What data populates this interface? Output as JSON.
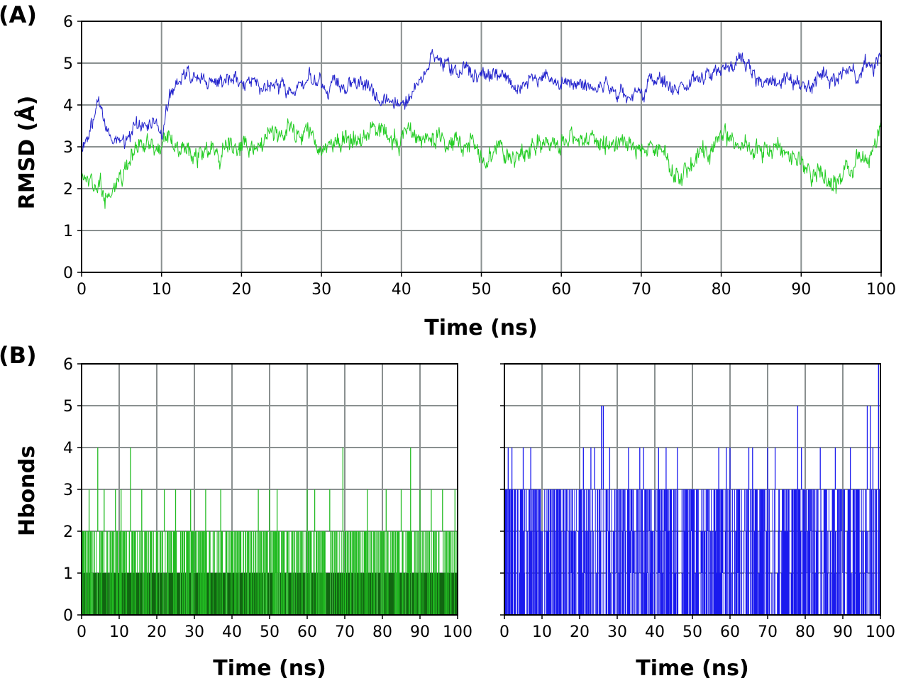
{
  "chart_data": [
    {
      "panel_label": "(A)",
      "type": "line",
      "xlabel": "Time (ns)",
      "ylabel": "RMSD (Å)",
      "xlim": [
        0,
        100
      ],
      "ylim": [
        0,
        6
      ],
      "xticks": [
        "0",
        "10",
        "20",
        "30",
        "40",
        "50",
        "60",
        "70",
        "80",
        "90",
        "100"
      ],
      "yticks": [
        "0",
        "1",
        "2",
        "3",
        "4",
        "5",
        "6"
      ],
      "grid": true,
      "series": [
        {
          "name": "blue trace",
          "color": "#2222cc",
          "x": [
            0,
            2,
            4,
            6,
            8,
            10,
            11,
            12,
            15,
            20,
            25,
            30,
            35,
            40,
            43,
            44,
            50,
            55,
            60,
            65,
            70,
            75,
            80,
            83,
            85,
            90,
            95,
            100
          ],
          "y": [
            2.8,
            3.9,
            3.0,
            3.3,
            3.5,
            3.5,
            4.3,
            4.5,
            4.5,
            4.6,
            4.4,
            4.6,
            4.5,
            4.0,
            4.7,
            5.2,
            4.7,
            4.5,
            4.6,
            4.4,
            4.4,
            4.6,
            4.7,
            5.0,
            4.6,
            4.5,
            4.7,
            5.1
          ],
          "noise": 0.22
        },
        {
          "name": "green trace",
          "color": "#22cc22",
          "x": [
            0,
            2,
            4,
            6,
            8,
            10,
            15,
            20,
            25,
            28,
            30,
            35,
            40,
            45,
            50,
            55,
            60,
            65,
            70,
            73,
            75,
            80,
            85,
            90,
            92,
            95,
            100
          ],
          "y": [
            2.3,
            2.0,
            1.9,
            2.7,
            3.1,
            3.1,
            2.9,
            3.0,
            3.2,
            3.4,
            3.0,
            3.3,
            3.2,
            3.2,
            2.8,
            2.9,
            3.1,
            3.2,
            3.0,
            2.8,
            2.3,
            3.2,
            3.0,
            2.7,
            2.3,
            2.2,
            3.2
          ],
          "noise": 0.28
        }
      ]
    },
    {
      "panel_label": "(B)",
      "type": "bar",
      "xlabel": "Time (ns)",
      "ylabel": "Hbonds",
      "xlim": [
        0,
        100
      ],
      "ylim": [
        0,
        6
      ],
      "xticks": [
        "0",
        "10",
        "20",
        "30",
        "40",
        "50",
        "60",
        "70",
        "80",
        "90",
        "100"
      ],
      "yticks": [
        "0",
        "1",
        "2",
        "3",
        "4",
        "5",
        "6"
      ],
      "grid": true,
      "series": [
        {
          "name": "green hbonds",
          "color": "#22bb22",
          "fill_color": "#116611",
          "baseline": 1,
          "spikes": [
            {
              "x": 4.3,
              "y": 4
            },
            {
              "x": 13,
              "y": 4
            },
            {
              "x": 69.5,
              "y": 4
            },
            {
              "x": 87.5,
              "y": 4
            },
            {
              "x": 2,
              "y": 3
            },
            {
              "x": 6,
              "y": 3
            },
            {
              "x": 9,
              "y": 3
            },
            {
              "x": 10.5,
              "y": 3
            },
            {
              "x": 16,
              "y": 3
            },
            {
              "x": 22,
              "y": 3
            },
            {
              "x": 25,
              "y": 3
            },
            {
              "x": 29,
              "y": 3
            },
            {
              "x": 33,
              "y": 3
            },
            {
              "x": 37,
              "y": 3
            },
            {
              "x": 47,
              "y": 3
            },
            {
              "x": 50,
              "y": 3
            },
            {
              "x": 52,
              "y": 3
            },
            {
              "x": 60,
              "y": 3
            },
            {
              "x": 62,
              "y": 3
            },
            {
              "x": 66,
              "y": 3
            },
            {
              "x": 76,
              "y": 3
            },
            {
              "x": 81,
              "y": 3
            },
            {
              "x": 85,
              "y": 3
            },
            {
              "x": 90,
              "y": 3
            },
            {
              "x": 93,
              "y": 3
            },
            {
              "x": 96,
              "y": 3
            },
            {
              "x": 99.3,
              "y": 3
            }
          ]
        },
        {
          "name": "blue hbonds",
          "color": "#1a1aee",
          "fill_color": "#1a1aee",
          "baseline": 0,
          "spikes": [
            {
              "x": 25.8,
              "y": 5
            },
            {
              "x": 26.3,
              "y": 5
            },
            {
              "x": 78,
              "y": 5
            },
            {
              "x": 96.5,
              "y": 5
            },
            {
              "x": 97.3,
              "y": 5
            },
            {
              "x": 99.5,
              "y": 6
            },
            {
              "x": 1,
              "y": 4
            },
            {
              "x": 2,
              "y": 4
            },
            {
              "x": 5,
              "y": 4
            },
            {
              "x": 7,
              "y": 4
            },
            {
              "x": 21,
              "y": 4
            },
            {
              "x": 23,
              "y": 4
            },
            {
              "x": 24,
              "y": 4
            },
            {
              "x": 28,
              "y": 4
            },
            {
              "x": 33,
              "y": 4
            },
            {
              "x": 36,
              "y": 4
            },
            {
              "x": 37,
              "y": 4
            },
            {
              "x": 41,
              "y": 4
            },
            {
              "x": 43,
              "y": 4
            },
            {
              "x": 46,
              "y": 4
            },
            {
              "x": 57,
              "y": 4
            },
            {
              "x": 59,
              "y": 4
            },
            {
              "x": 60,
              "y": 4
            },
            {
              "x": 65,
              "y": 4
            },
            {
              "x": 66,
              "y": 4
            },
            {
              "x": 70,
              "y": 4
            },
            {
              "x": 72,
              "y": 4
            },
            {
              "x": 79,
              "y": 4
            },
            {
              "x": 84,
              "y": 4
            },
            {
              "x": 88,
              "y": 4
            },
            {
              "x": 92,
              "y": 4
            },
            {
              "x": 98,
              "y": 4
            }
          ]
        }
      ]
    }
  ]
}
